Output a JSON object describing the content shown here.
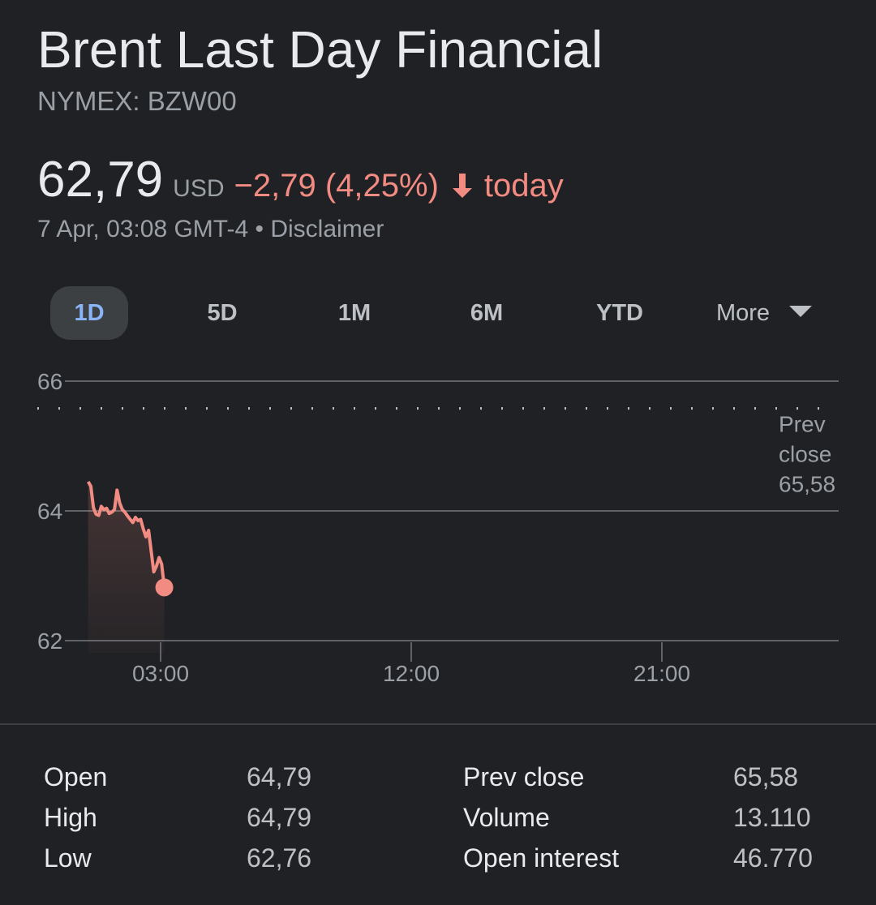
{
  "header": {
    "title": "Brent Last Day Financial",
    "ticker": "NYMEX: BZW00",
    "price": "62,79",
    "currency": "USD",
    "change": "−2,79 (4,25%)",
    "change_period": "today",
    "timestamp": "7 Apr, 03:08 GMT-4",
    "separator": " • ",
    "disclaimer": "Disclaimer",
    "negative_color": "#f28b82"
  },
  "tabs": [
    {
      "label": "1D",
      "active": true
    },
    {
      "label": "5D",
      "active": false
    },
    {
      "label": "1M",
      "active": false
    },
    {
      "label": "6M",
      "active": false
    },
    {
      "label": "YTD",
      "active": false
    }
  ],
  "more_tab": {
    "label": "More",
    "icon": "chevron-down-icon"
  },
  "chart_data": {
    "type": "line",
    "y_ticks": [
      "66",
      "64",
      "62"
    ],
    "ylim": [
      62,
      66
    ],
    "x_ticks": [
      "03:00",
      "12:00",
      "21:00"
    ],
    "prev_close": {
      "label_line1": "Prev",
      "label_line2": "close",
      "value": "65,58",
      "y": 65.58
    },
    "line_color": "#f28b82",
    "series": [
      {
        "values": [
          64.45,
          64.38,
          64.05,
          63.95,
          63.93,
          64.07,
          64.02,
          64.04,
          63.96,
          63.98,
          64.02,
          64.32,
          64.12,
          64.02,
          63.98,
          63.92,
          63.87,
          63.82,
          63.9,
          63.85,
          63.87,
          63.72,
          63.6,
          63.7,
          63.38,
          63.06,
          63.15,
          63.28,
          63.18,
          62.82
        ]
      }
    ],
    "x_start_hour": 0.4,
    "x_end_hour": 3.133,
    "x_domain_hours": [
      0,
      27
    ]
  },
  "stats": {
    "left": [
      {
        "label": "Open",
        "value": "64,79"
      },
      {
        "label": "High",
        "value": "64,79"
      },
      {
        "label": "Low",
        "value": "62,76"
      }
    ],
    "right": [
      {
        "label": "Prev close",
        "value": "65,58"
      },
      {
        "label": "Volume",
        "value": "13.110"
      },
      {
        "label": "Open interest",
        "value": "46.770"
      }
    ]
  }
}
